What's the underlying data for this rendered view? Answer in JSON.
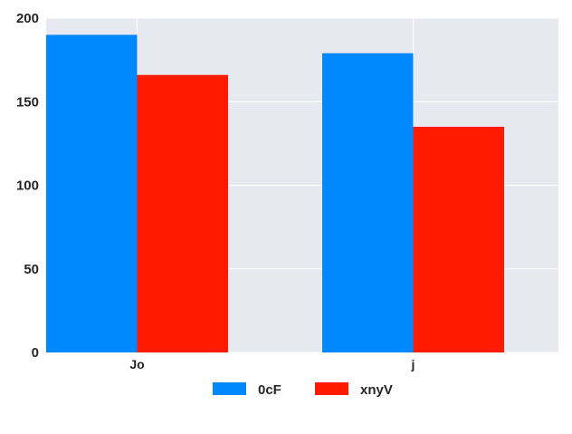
{
  "chart_data": {
    "type": "bar",
    "categories": [
      "Jo",
      "j"
    ],
    "series": [
      {
        "name": "0cF",
        "values": [
          190,
          179
        ],
        "color": "#0088ff"
      },
      {
        "name": "xnyV",
        "values": [
          166,
          135
        ],
        "color": "#ff1a00"
      }
    ],
    "y_ticks": [
      "0",
      "50",
      "100",
      "150",
      "200"
    ],
    "ylim": [
      0,
      200
    ],
    "grid": true,
    "legend_position": "bottom-center",
    "plot_background": "#e8e8f0",
    "grid_color": "#ffffff"
  }
}
